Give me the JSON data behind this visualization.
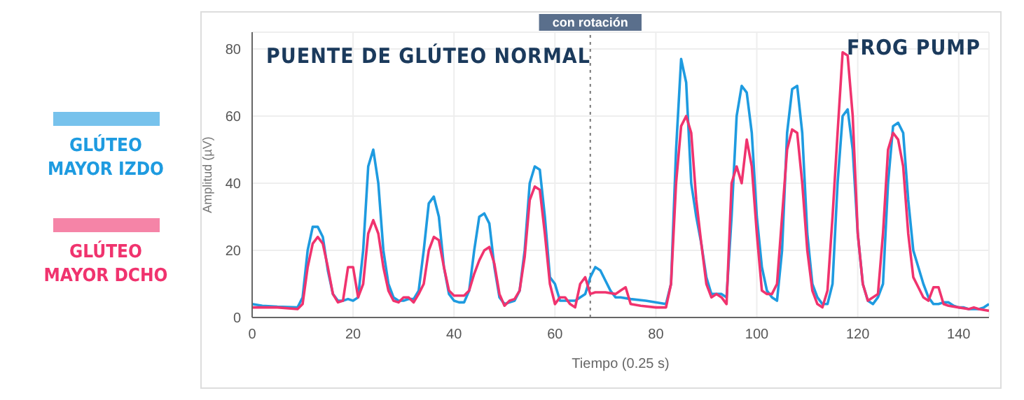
{
  "chart_data": {
    "type": "line",
    "xlabel": "Tiempo (0.25 s)",
    "ylabel": "Amplitud (µV)",
    "annotations": [
      "PUENTE DE GLÚTEO NORMAL",
      "FROG PUMP"
    ],
    "xlim": [
      0,
      146
    ],
    "xticks": [
      0,
      20,
      40,
      60,
      80,
      100,
      120,
      140
    ],
    "ylim": [
      0,
      85
    ],
    "yticks": [
      0,
      20,
      40,
      60,
      80
    ],
    "grid": true,
    "legend": "left",
    "marker": "none",
    "line_style": "solid",
    "ref_lines": [
      {
        "axis": "x",
        "value": 67,
        "label": "con rotación",
        "line_style": "dotted",
        "color": "#777777"
      }
    ],
    "series": [
      {
        "name": "GLÚTEO MAYOR IZDO",
        "color": "#1e9be0",
        "x": [
          0,
          2,
          5,
          9,
          10,
          11,
          12,
          13,
          14,
          15,
          16,
          17,
          18,
          19,
          20,
          21,
          22,
          23,
          24,
          25,
          26,
          27,
          28,
          29,
          30,
          31,
          32,
          33,
          34,
          35,
          36,
          37,
          38,
          39,
          40,
          41,
          42,
          43,
          44,
          45,
          46,
          47,
          48,
          49,
          50,
          51,
          52,
          53,
          54,
          55,
          56,
          57,
          58,
          59,
          60,
          61,
          62,
          63,
          64,
          65,
          66,
          67,
          68,
          69,
          70,
          71,
          72,
          73,
          75,
          78,
          82,
          83,
          84,
          85,
          86,
          87,
          88,
          89,
          90,
          91,
          92,
          93,
          94,
          95,
          96,
          97,
          98,
          99,
          100,
          101,
          102,
          103,
          104,
          105,
          106,
          107,
          108,
          109,
          110,
          111,
          112,
          113,
          114,
          115,
          116,
          117,
          118,
          119,
          120,
          121,
          122,
          123,
          124,
          125,
          126,
          127,
          128,
          129,
          130,
          131,
          132,
          133,
          134,
          135,
          136,
          137,
          138,
          139,
          140,
          141,
          142,
          144,
          145,
          146
        ],
        "values": [
          4,
          3.5,
          3.2,
          3,
          6,
          20,
          27,
          27,
          24,
          14,
          7,
          5,
          5,
          5.5,
          5,
          6,
          20,
          45,
          50,
          40,
          20,
          10,
          6,
          5,
          5,
          5.5,
          5.5,
          8,
          20,
          34,
          36,
          30,
          15,
          7,
          5,
          4.5,
          4.5,
          8,
          20,
          30,
          31,
          28,
          15,
          6,
          4,
          4.5,
          5,
          8,
          20,
          40,
          45,
          44,
          30,
          12,
          10,
          5,
          5,
          5,
          5,
          6,
          7,
          12,
          15,
          14,
          11,
          8,
          6,
          6,
          5.5,
          5,
          4,
          10,
          50,
          77,
          70,
          40,
          30,
          22,
          12,
          7,
          7,
          7,
          6,
          30,
          60,
          69,
          67,
          55,
          30,
          15,
          8,
          6,
          5,
          20,
          55,
          68,
          69,
          55,
          25,
          10,
          6,
          4,
          4,
          10,
          40,
          60,
          62,
          50,
          25,
          10,
          5,
          4,
          6,
          10,
          40,
          57,
          58,
          55,
          35,
          20,
          15,
          10,
          6,
          4,
          4,
          4.5,
          4.5,
          3.5,
          3,
          3,
          2.5,
          2.5,
          3,
          4
        ]
      },
      {
        "name": "GLÚTEO MAYOR DCHO",
        "color": "#f0336e",
        "x": [
          0,
          5,
          9,
          10,
          11,
          12,
          13,
          14,
          15,
          16,
          17,
          18,
          19,
          20,
          21,
          22,
          23,
          24,
          25,
          26,
          27,
          28,
          29,
          30,
          31,
          32,
          33,
          34,
          35,
          36,
          37,
          38,
          39,
          40,
          41,
          42,
          43,
          44,
          45,
          46,
          47,
          48,
          49,
          50,
          51,
          52,
          53,
          54,
          55,
          56,
          57,
          58,
          59,
          60,
          61,
          62,
          63,
          64,
          65,
          66,
          67,
          68,
          70,
          72,
          73,
          74,
          75,
          77,
          80,
          82,
          83,
          84,
          85,
          86,
          87,
          88,
          89,
          90,
          91,
          92,
          93,
          94,
          95,
          96,
          97,
          98,
          99,
          100,
          101,
          102,
          103,
          104,
          105,
          106,
          107,
          108,
          109,
          110,
          111,
          112,
          113,
          114,
          115,
          116,
          117,
          118,
          119,
          120,
          121,
          122,
          123,
          124,
          125,
          126,
          127,
          128,
          129,
          130,
          131,
          132,
          133,
          134,
          135,
          136,
          137,
          138,
          140,
          142,
          143,
          144,
          146
        ],
        "values": [
          3,
          3,
          2.5,
          4,
          15,
          22,
          24,
          22,
          15,
          7,
          4.5,
          5,
          15,
          15,
          6,
          10,
          25,
          29,
          25,
          15,
          8,
          5,
          4.5,
          6,
          6,
          4.5,
          7,
          10,
          20,
          24,
          23,
          15,
          8,
          6.5,
          6.5,
          6.5,
          8,
          13,
          17,
          20,
          21,
          16,
          7,
          3.5,
          5,
          5.5,
          8,
          18,
          35,
          39,
          38,
          25,
          10,
          4,
          6,
          6,
          4,
          3,
          10,
          12,
          7,
          7.5,
          7.5,
          7,
          8,
          9,
          4,
          3.5,
          3,
          3,
          10,
          40,
          57,
          60,
          55,
          35,
          22,
          10,
          6,
          7,
          6,
          4,
          40,
          45,
          40,
          53,
          45,
          25,
          8,
          7,
          7,
          10,
          30,
          50,
          56,
          55,
          40,
          20,
          8,
          4,
          3,
          8,
          30,
          55,
          79,
          78,
          60,
          25,
          10,
          5,
          6,
          7,
          25,
          50,
          55,
          53,
          45,
          25,
          12,
          9,
          6,
          5,
          9,
          9,
          4,
          3.5,
          3,
          2.5,
          3,
          2.5,
          2
        ]
      }
    ]
  }
}
